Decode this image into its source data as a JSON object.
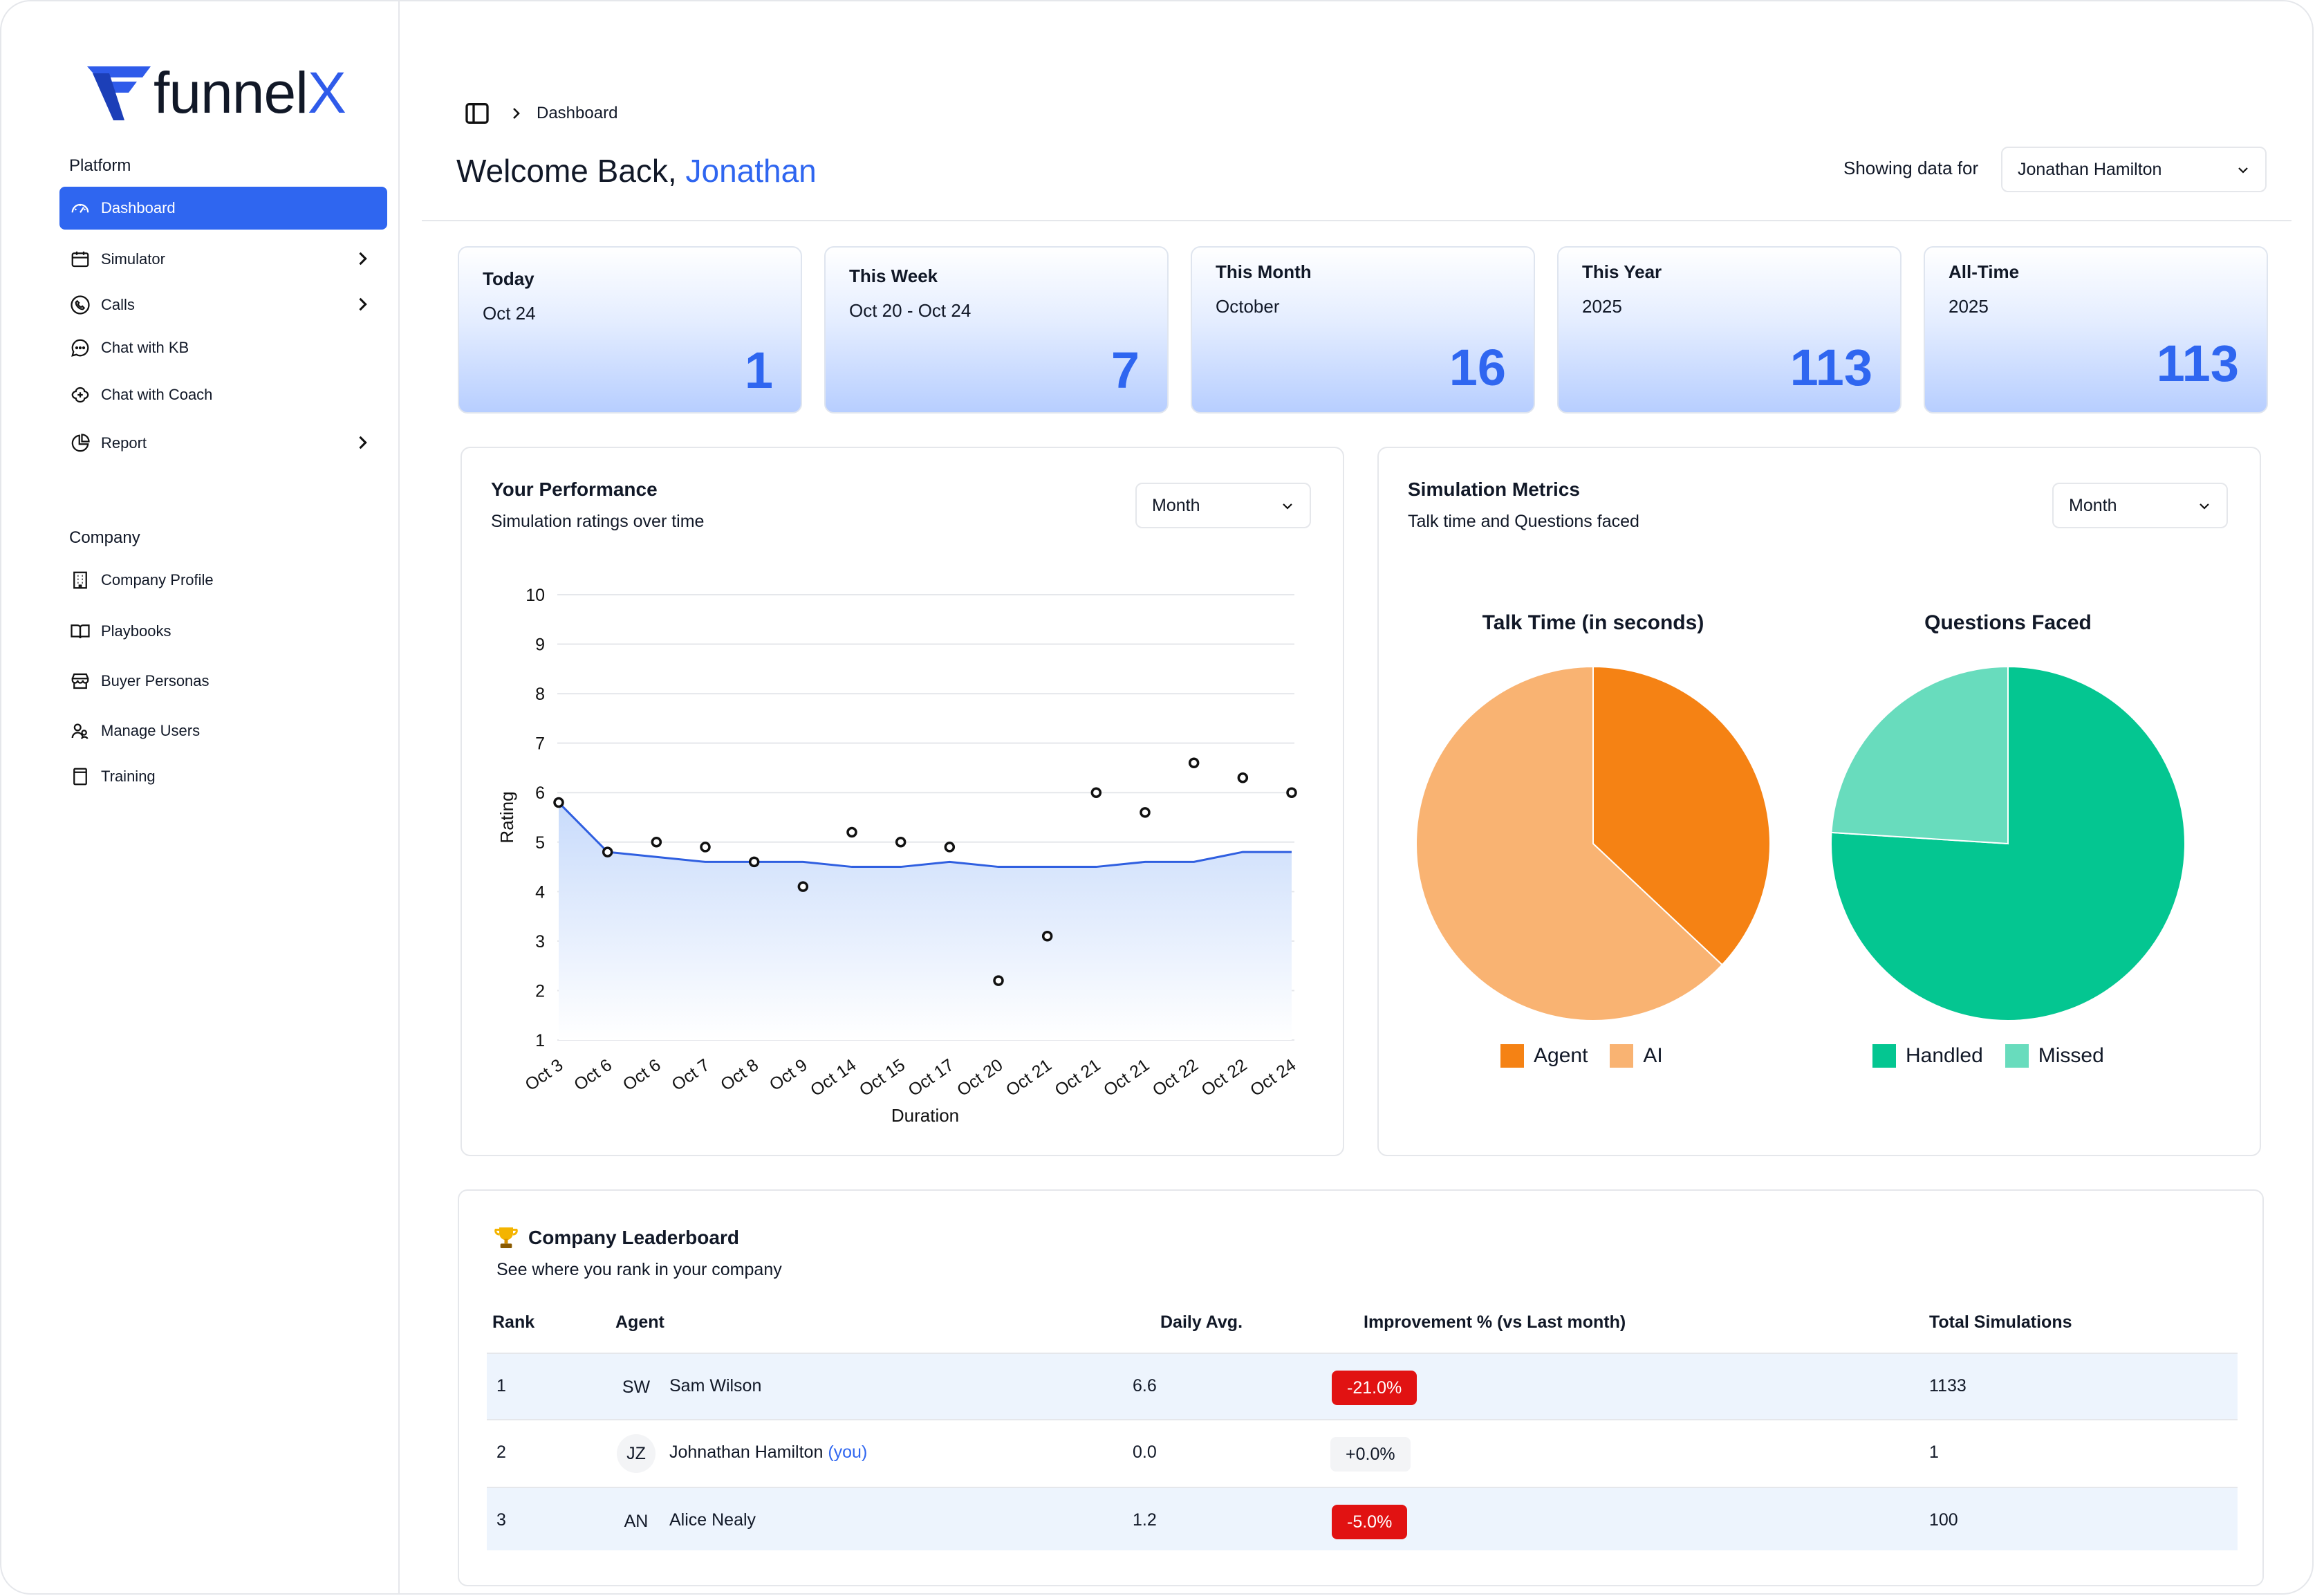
{
  "brand": {
    "logo_text_main": "funnel",
    "logo_text_x": "X"
  },
  "sidebar": {
    "platform_label": "Platform",
    "platform_items": [
      {
        "label": "Dashboard",
        "icon": "gauge-icon",
        "active": true,
        "has_chevron": false
      },
      {
        "label": "Simulator",
        "icon": "calendar-icon",
        "has_chevron": true
      },
      {
        "label": "Calls",
        "icon": "phone-icon",
        "has_chevron": true
      },
      {
        "label": "Chat with KB",
        "icon": "chat-icon",
        "has_chevron": false
      },
      {
        "label": "Chat with Coach",
        "icon": "brain-icon",
        "has_chevron": false
      },
      {
        "label": "Report",
        "icon": "pie-chart-icon",
        "has_chevron": true
      }
    ],
    "company_label": "Company",
    "company_items": [
      {
        "label": "Company Profile",
        "icon": "building-icon"
      },
      {
        "label": "Playbooks",
        "icon": "book-icon"
      },
      {
        "label": "Buyer Personas",
        "icon": "store-icon"
      },
      {
        "label": "Manage Users",
        "icon": "users-icon"
      },
      {
        "label": "Training",
        "icon": "document-icon"
      }
    ]
  },
  "header": {
    "breadcrumb": "Dashboard",
    "welcome_prefix": "Welcome Back,",
    "welcome_name": "Jonathan",
    "showing_label": "Showing data for",
    "user_select": "Jonathan Hamilton"
  },
  "stats": [
    {
      "title": "Today",
      "subtitle": "Oct 24",
      "value": "1"
    },
    {
      "title": "This Week",
      "subtitle": "Oct 20 - Oct 24",
      "value": "7"
    },
    {
      "title": "This Month",
      "subtitle": "October",
      "value": "16"
    },
    {
      "title": "This Year",
      "subtitle": "2025",
      "value": "113"
    },
    {
      "title": "All-Time",
      "subtitle": "2025",
      "value": "113"
    }
  ],
  "performance": {
    "title": "Your Performance",
    "subtitle": "Simulation ratings over time",
    "period": "Month"
  },
  "metrics": {
    "title": "Simulation Metrics",
    "subtitle": "Talk time and Questions faced",
    "period": "Month"
  },
  "chart_data": [
    {
      "type": "line",
      "title": "",
      "xlabel": "Duration",
      "ylabel": "Rating",
      "ylim": [
        1,
        10
      ],
      "yticks": [
        1,
        2,
        3,
        4,
        5,
        6,
        7,
        8,
        9,
        10
      ],
      "grid": true,
      "categories": [
        "Oct 3",
        "Oct 6",
        "Oct 6",
        "Oct 7",
        "Oct 8",
        "Oct 9",
        "Oct 14",
        "Oct 15",
        "Oct 17",
        "Oct 20",
        "Oct 21",
        "Oct 21",
        "Oct 21",
        "Oct 22",
        "Oct 22",
        "Oct 24"
      ],
      "series": [
        {
          "kind": "area-line",
          "color": "#2f5fe0",
          "values": [
            5.8,
            4.8,
            4.7,
            4.6,
            4.6,
            4.6,
            4.5,
            4.5,
            4.6,
            4.5,
            4.5,
            4.5,
            4.6,
            4.6,
            4.8,
            4.8
          ]
        },
        {
          "kind": "points",
          "color": "#111111",
          "values": [
            5.8,
            4.8,
            5.0,
            4.9,
            4.6,
            4.1,
            5.2,
            5.0,
            4.9,
            2.2,
            3.1,
            6.0,
            5.6,
            6.6,
            6.3,
            6.0
          ]
        }
      ]
    },
    {
      "type": "pie",
      "title": "Talk Time (in seconds)",
      "slices": [
        {
          "label": "Agent",
          "value": 37,
          "color": "#f58214"
        },
        {
          "label": "AI",
          "value": 63,
          "color": "#f9b372"
        }
      ]
    },
    {
      "type": "pie",
      "title": "Questions Faced",
      "slices": [
        {
          "label": "Handled",
          "value": 76,
          "color": "#04c691"
        },
        {
          "label": "Missed",
          "value": 24,
          "color": "#68dcbd"
        }
      ]
    }
  ],
  "leaderboard": {
    "title": "Company Leaderboard",
    "subtitle": "See where you rank in your company",
    "columns": [
      "Rank",
      "Agent",
      "Daily Avg.",
      "Improvement % (vs Last month)",
      "Total Simulations"
    ],
    "rows": [
      {
        "rank": "1",
        "initials": "SW",
        "name": "Sam Wilson",
        "you": "",
        "daily": "6.6",
        "improvement": "-21.0%",
        "total": "1133"
      },
      {
        "rank": "2",
        "initials": "JZ",
        "name": "Johnathan Hamilton",
        "you": "(you)",
        "daily": "0.0",
        "improvement": "+0.0%",
        "total": "1"
      },
      {
        "rank": "3",
        "initials": "AN",
        "name": "Alice Nealy",
        "you": "",
        "daily": "1.2",
        "improvement": "-5.0%",
        "total": "100"
      }
    ]
  }
}
